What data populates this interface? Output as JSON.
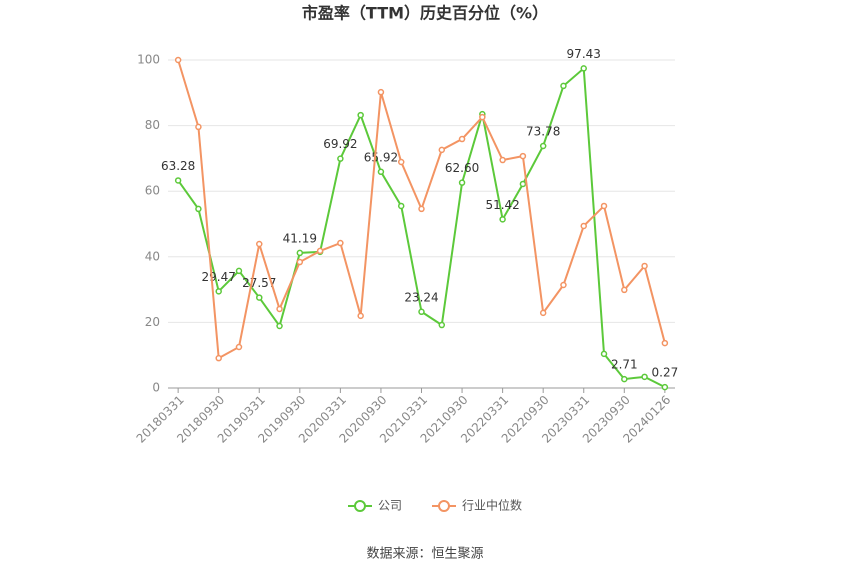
{
  "chart_data": {
    "type": "line",
    "title": "市盈率（TTM）历史百分位（%）",
    "categories": [
      "20180331",
      null,
      "20180930",
      null,
      "20190331",
      null,
      "20190930",
      null,
      "20200331",
      null,
      "20200930",
      null,
      "20210331",
      null,
      "20210930",
      null,
      "20220331",
      null,
      "20220930",
      null,
      "20230331",
      null,
      "20230930",
      null,
      "20240126"
    ],
    "series": [
      {
        "name": "公司",
        "color": "#5cc93a",
        "values": [
          63.28,
          54.6,
          29.47,
          35.7,
          27.57,
          18.9,
          41.19,
          41.5,
          69.92,
          83.2,
          65.92,
          55.5,
          23.24,
          19.2,
          62.6,
          83.5,
          51.42,
          62.2,
          73.78,
          92.1,
          97.43,
          10.4,
          2.71,
          3.4,
          0.27
        ],
        "value_labels": [
          "63.28",
          null,
          "29.47",
          null,
          "27.57",
          null,
          "41.19",
          null,
          "69.92",
          null,
          "65.92",
          null,
          "23.24",
          null,
          "62.60",
          null,
          "51.42",
          null,
          "73.78",
          null,
          "97.43",
          null,
          "2.71",
          null,
          "0.27"
        ]
      },
      {
        "name": "行业中位数",
        "color": "#f39463",
        "values": [
          100,
          79.6,
          9.1,
          12.5,
          43.9,
          24.1,
          38.4,
          41.8,
          44.2,
          22.0,
          90.2,
          68.9,
          54.6,
          72.6,
          75.9,
          82.6,
          69.5,
          70.7,
          22.9,
          31.4,
          49.4,
          55.5,
          29.9,
          37.2,
          13.7
        ]
      }
    ],
    "ylim": [
      0,
      100
    ],
    "yticks": [
      0,
      20,
      40,
      60,
      80,
      100
    ],
    "grid": true,
    "legend": "bottom",
    "source": "数据来源：恒生聚源"
  }
}
